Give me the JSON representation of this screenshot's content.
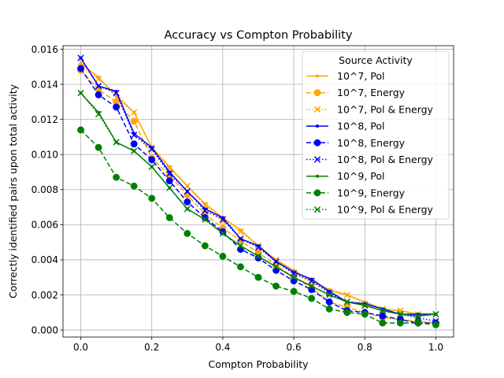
{
  "chart_data": {
    "type": "line",
    "title": "Accuracy vs Compton Probability",
    "xlabel": "Compton Probability",
    "ylabel": "Correctly identified pairs upon total activity",
    "xlim": [
      -0.05,
      1.05
    ],
    "ylim": [
      -0.0004,
      0.0162
    ],
    "xticks": [
      0.0,
      0.2,
      0.4,
      0.6,
      0.8,
      1.0
    ],
    "xtick_labels": [
      "0.0",
      "0.2",
      "0.4",
      "0.6",
      "0.8",
      "1.0"
    ],
    "yticks": [
      0.0,
      0.002,
      0.004,
      0.006,
      0.008,
      0.01,
      0.012,
      0.014,
      0.016
    ],
    "ytick_labels": [
      "0.000",
      "0.002",
      "0.004",
      "0.006",
      "0.008",
      "0.010",
      "0.012",
      "0.014",
      "0.016"
    ],
    "grid": true,
    "legend": {
      "title": "Source Activity",
      "placement": "top-right"
    },
    "x": [
      0.0,
      0.05,
      0.1,
      0.15,
      0.2,
      0.25,
      0.3,
      0.35,
      0.4,
      0.45,
      0.5,
      0.55,
      0.6,
      0.65,
      0.7,
      0.75,
      0.8,
      0.85,
      0.9,
      0.95,
      1.0
    ],
    "series": [
      {
        "name": "10^7, Pol",
        "color": "#ffa500",
        "style": "solid",
        "marker": "point",
        "values": [
          0.0152,
          0.0144,
          0.0133,
          0.0124,
          0.0104,
          0.0093,
          0.0082,
          0.0072,
          0.0064,
          0.0057,
          0.0048,
          0.004,
          0.0034,
          0.0028,
          0.0023,
          0.002,
          0.0016,
          0.0012,
          0.0011,
          0.0009,
          0.0009
        ]
      },
      {
        "name": "10^7, Energy",
        "color": "#ffa500",
        "style": "dashed",
        "marker": "circle",
        "values": [
          0.0148,
          0.0137,
          0.013,
          0.0119,
          0.0098,
          0.0088,
          0.0077,
          0.0066,
          0.0058,
          0.0051,
          0.0044,
          0.0037,
          0.003,
          0.0024,
          0.0016,
          0.0013,
          0.001,
          0.0007,
          0.0006,
          0.0005,
          0.0004
        ]
      },
      {
        "name": "10^7, Pol & Energy",
        "color": "#ffa500",
        "style": "dotted",
        "marker": "x",
        "values": [
          0.015,
          0.0143,
          0.0135,
          0.0124,
          0.0104,
          0.0092,
          0.0082,
          0.0071,
          0.0062,
          0.0056,
          0.0048,
          0.004,
          0.0033,
          0.0027,
          0.0022,
          0.002,
          0.0015,
          0.0012,
          0.0011,
          0.0009,
          0.0009
        ]
      },
      {
        "name": "10^8, Pol",
        "color": "#0000ff",
        "style": "solid",
        "marker": "point",
        "values": [
          0.0155,
          0.0139,
          0.0136,
          0.0112,
          0.0104,
          0.009,
          0.0079,
          0.0069,
          0.0064,
          0.0052,
          0.0048,
          0.0039,
          0.0033,
          0.0029,
          0.0022,
          0.0016,
          0.0015,
          0.0012,
          0.0009,
          0.0009,
          0.0009
        ]
      },
      {
        "name": "10^8, Energy",
        "color": "#0000ff",
        "style": "dashed",
        "marker": "circle",
        "values": [
          0.0149,
          0.0134,
          0.0127,
          0.0106,
          0.0097,
          0.0085,
          0.0073,
          0.0064,
          0.0056,
          0.0046,
          0.0041,
          0.0034,
          0.0028,
          0.0023,
          0.0016,
          0.0011,
          0.001,
          0.0008,
          0.0006,
          0.0004,
          0.0004
        ]
      },
      {
        "name": "10^8, Pol & Energy",
        "color": "#0000ff",
        "style": "dotted",
        "marker": "x",
        "values": [
          0.0155,
          0.0139,
          0.0135,
          0.0111,
          0.0103,
          0.0089,
          0.0079,
          0.0068,
          0.0063,
          0.0052,
          0.0047,
          0.0039,
          0.0032,
          0.0028,
          0.0021,
          0.0016,
          0.0014,
          0.0011,
          0.0009,
          0.0007,
          0.0005
        ]
      },
      {
        "name": "10^9, Pol",
        "color": "#008000",
        "style": "solid",
        "marker": "point",
        "values": [
          0.0135,
          0.0124,
          0.0107,
          0.0102,
          0.0093,
          0.0081,
          0.0069,
          0.0063,
          0.0055,
          0.0048,
          0.0042,
          0.0036,
          0.003,
          0.0025,
          0.002,
          0.0016,
          0.0014,
          0.0011,
          0.0009,
          0.0008,
          0.0009
        ]
      },
      {
        "name": "10^9, Energy",
        "color": "#008000",
        "style": "dashed",
        "marker": "circle",
        "values": [
          0.0114,
          0.0104,
          0.0087,
          0.0082,
          0.0075,
          0.0064,
          0.0055,
          0.0048,
          0.0042,
          0.0036,
          0.003,
          0.0025,
          0.0022,
          0.0018,
          0.0012,
          0.001,
          0.0009,
          0.0004,
          0.0004,
          0.0004,
          0.0003
        ]
      },
      {
        "name": "10^9, Pol & Energy",
        "color": "#008000",
        "style": "dotted",
        "marker": "x",
        "values": [
          0.0135,
          0.0123,
          0.0107,
          0.0102,
          0.0093,
          0.0081,
          0.0069,
          0.0063,
          0.0055,
          0.0048,
          0.0042,
          0.0036,
          0.003,
          0.0025,
          0.002,
          0.0016,
          0.0014,
          0.0011,
          0.0009,
          0.0008,
          0.0009
        ]
      }
    ]
  }
}
